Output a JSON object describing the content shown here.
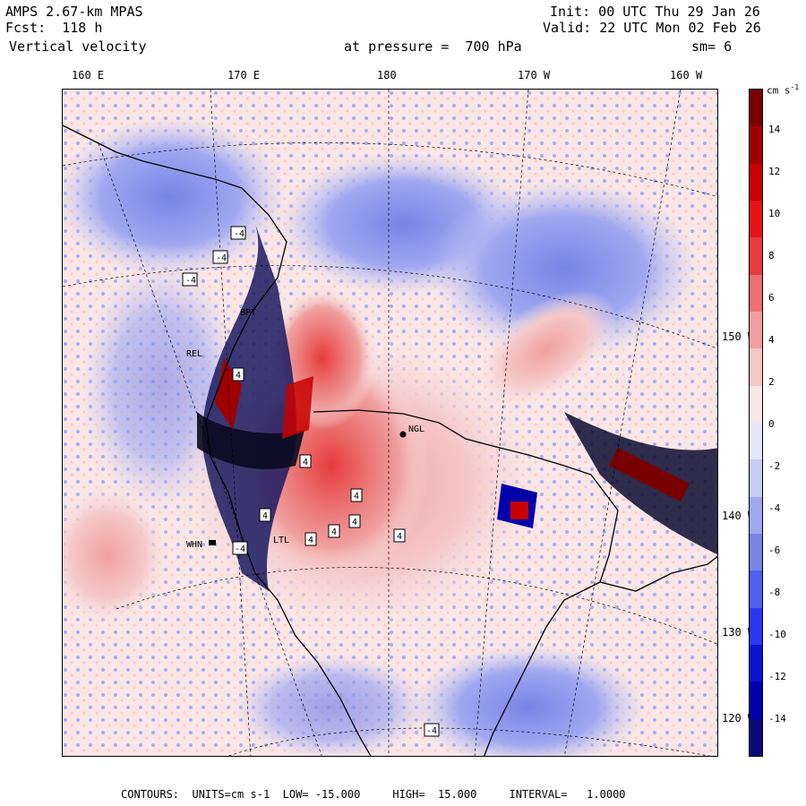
{
  "header": {
    "model": "AMPS 2.67-km MPAS",
    "fcst": "Fcst:  118 h",
    "field": "Vertical velocity",
    "init": "Init: 00 UTC Thu 29 Jan 26",
    "valid": "Valid: 22 UTC Mon 02 Feb 26",
    "level": "at pressure =  700 hPa",
    "smooth": "sm= 6"
  },
  "top_ticks": [
    "160 E",
    "170 E",
    "180",
    "170 W",
    "160 W"
  ],
  "right_ticks": [
    "150 W",
    "140 W",
    "130 W",
    "120 W"
  ],
  "colorbar": {
    "unit": "cm s",
    "unit_exp": "-1",
    "labels": [
      "14",
      "12",
      "10",
      "8",
      "6",
      "4",
      "2",
      "0",
      "-2",
      "-4",
      "-6",
      "-8",
      "-10",
      "-12",
      "-14"
    ],
    "colors": [
      "#0a0a78",
      "#0000aa",
      "#0a14d2",
      "#2838f0",
      "#5060f0",
      "#7884e6",
      "#a0a8f0",
      "#c8cdf5",
      "#e6e6fa",
      "#fae6e6",
      "#f5c8c8",
      "#f0a0a0",
      "#eb7070",
      "#e63c3c",
      "#e61414",
      "#c80000",
      "#a00000",
      "#780000"
    ]
  },
  "map_labels": {
    "station_ngl": "NGL",
    "station_whn": "WHN",
    "station_bpt": "BPT",
    "station_rel": "REL",
    "station_ltl": "LTL",
    "marker_4": "4",
    "marker_neg4": "-4"
  },
  "footer": "CONTOURS:  UNITS=cm s-1  LOW= -15.000     HIGH=  15.000     INTERVAL=   1.0000"
}
